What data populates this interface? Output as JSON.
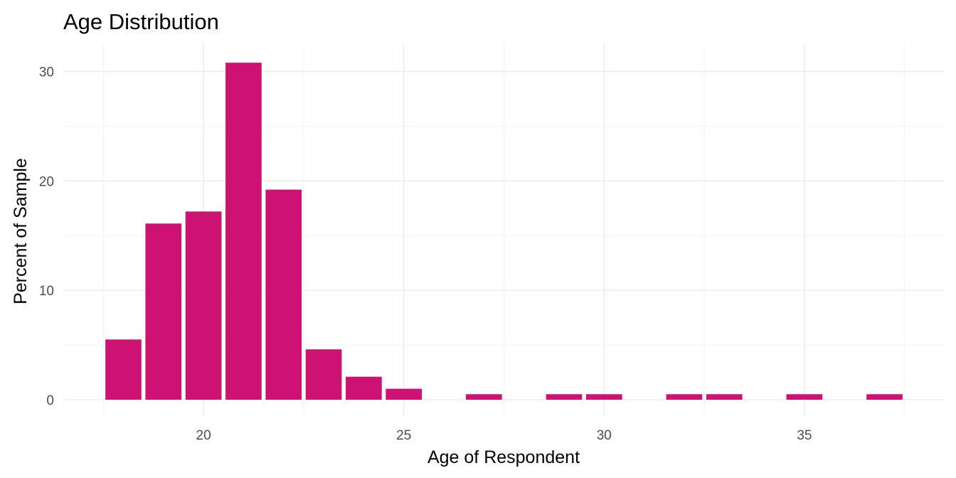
{
  "chart_data": {
    "type": "bar",
    "title": "Age Distribution",
    "xlabel": "Age of Respondent",
    "ylabel": "Percent of Sample",
    "x": [
      18,
      19,
      20,
      21,
      22,
      23,
      24,
      25,
      27,
      29,
      30,
      32,
      33,
      35,
      37
    ],
    "values": [
      5.5,
      16.1,
      17.2,
      30.8,
      19.2,
      4.6,
      2.1,
      1.0,
      0.5,
      0.5,
      0.5,
      0.5,
      0.5,
      0.5,
      0.5
    ],
    "xlim": [
      16.5,
      38.5
    ],
    "ylim": [
      -1.5,
      32.5
    ],
    "x_ticks": [
      20,
      25,
      30,
      35
    ],
    "y_ticks": [
      0,
      10,
      20,
      30
    ],
    "grid": true,
    "bar_color": "#CC1273"
  }
}
